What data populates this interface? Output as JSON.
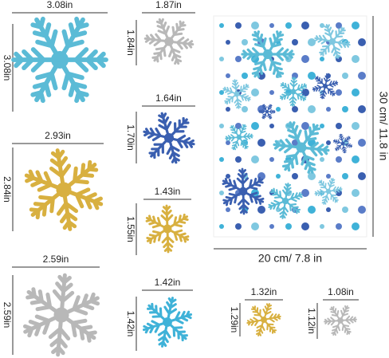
{
  "items": [
    {
      "width": "3.08in",
      "height": "3.08in"
    },
    {
      "width": "1.87in",
      "height": "1.84in"
    },
    {
      "width": "1.64in",
      "height": "1.70in"
    },
    {
      "width": "2.93in",
      "height": "2.84in"
    },
    {
      "width": "1.43in",
      "height": "1.55in"
    },
    {
      "width": "2.59in",
      "height": "2.59in"
    },
    {
      "width": "1.42in",
      "height": "1.42in"
    },
    {
      "width": "1.32in",
      "height": "1.29in"
    },
    {
      "width": "1.08in",
      "height": "1.12in"
    }
  ],
  "sheet": {
    "width": "20 cm/ 7.8 in",
    "height": "30 cm/ 11.8 in"
  }
}
